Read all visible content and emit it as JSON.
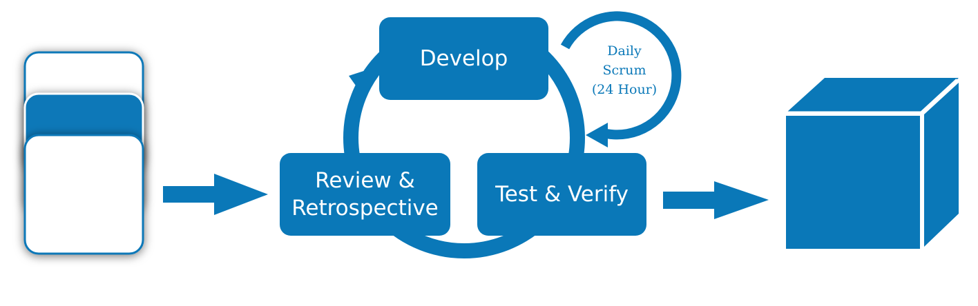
{
  "colors": {
    "primary": "#0a78b8",
    "card_border": "#0a78b8",
    "card_fill": "#ffffff"
  },
  "steps": {
    "develop": "Develop",
    "review_line1": "Review &",
    "review_line2": "Retrospective",
    "test": "Test & Verify"
  },
  "daily_scrum": {
    "line1": "Daily",
    "line2": "Scrum",
    "line3": "(24 Hour)"
  },
  "icons": {
    "input": "stacked-cards-icon",
    "output": "cube-icon"
  }
}
